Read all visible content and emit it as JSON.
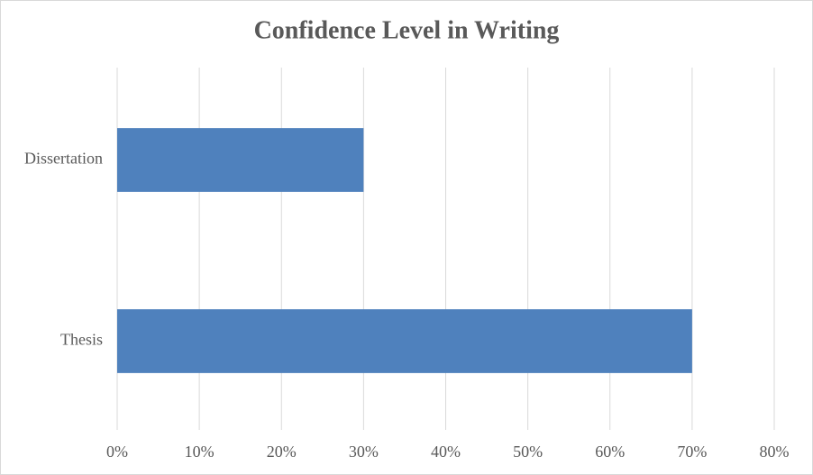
{
  "chart_data": {
    "type": "bar",
    "orientation": "horizontal",
    "title": "Confidence Level in Writing",
    "categories": [
      "Dissertation",
      "Thesis"
    ],
    "values": [
      30,
      70
    ],
    "color": "#4f81bd",
    "xlim": [
      0,
      80
    ],
    "xticks": [
      {
        "value": 0,
        "label": "0%"
      },
      {
        "value": 10,
        "label": "10%"
      },
      {
        "value": 20,
        "label": "20%"
      },
      {
        "value": 30,
        "label": "30%"
      },
      {
        "value": 40,
        "label": "40%"
      },
      {
        "value": 50,
        "label": "50%"
      },
      {
        "value": 60,
        "label": "60%"
      },
      {
        "value": 70,
        "label": "70%"
      },
      {
        "value": 80,
        "label": "80%"
      }
    ],
    "grid": true
  }
}
